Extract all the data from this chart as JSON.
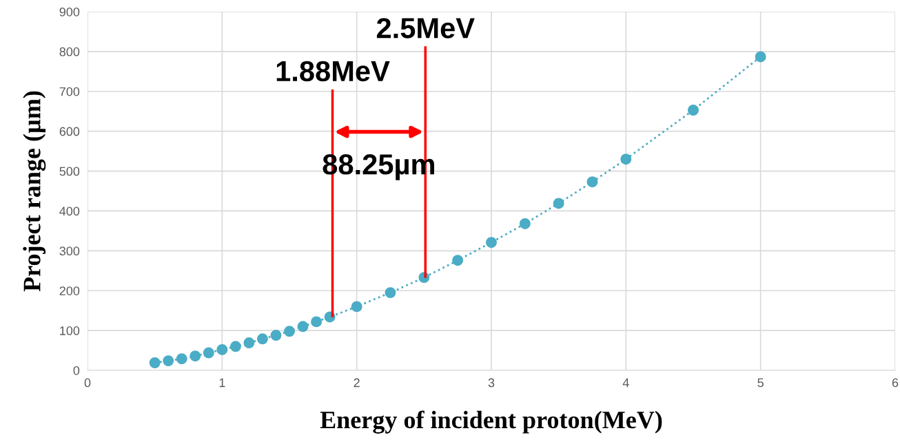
{
  "chart_data": {
    "type": "scatter",
    "xlabel": "Energy of incident proton(MeV)",
    "ylabel": "Project range (µm)",
    "x": [
      0.5,
      0.6,
      0.7,
      0.8,
      0.9,
      1.0,
      1.1,
      1.2,
      1.3,
      1.4,
      1.5,
      1.6,
      1.7,
      1.8,
      2.0,
      2.25,
      2.5,
      2.75,
      3.0,
      3.25,
      3.5,
      3.75,
      4.0,
      4.5,
      5.0
    ],
    "series": [
      {
        "color": "#4bacc6",
        "marker": "circle",
        "values": [
          19,
          24,
          29,
          36,
          44,
          52,
          60,
          69,
          79,
          88,
          98,
          110,
          122,
          134,
          160,
          195,
          233,
          276,
          321,
          368,
          419,
          473,
          530,
          653,
          787
        ]
      },
      {
        "type": "line",
        "color": "#4bacc6",
        "line_style": "dotted",
        "values": [
          19,
          24,
          29,
          36,
          44,
          52,
          60,
          69,
          79,
          88,
          98,
          110,
          122,
          134,
          160,
          195,
          233,
          276,
          321,
          368,
          419,
          473,
          530,
          653,
          787
        ]
      }
    ],
    "xlim": [
      0,
      6
    ],
    "xticks": [
      0,
      1,
      2,
      3,
      4,
      5,
      6
    ],
    "ylim": [
      0,
      900
    ],
    "yticks": [
      0,
      100,
      200,
      300,
      400,
      500,
      600,
      700,
      800,
      900
    ],
    "grid": true,
    "ref_lines": [
      {
        "axis": "x",
        "value": 1.82,
        "label": "1.88MeV",
        "color": "#ff0000"
      },
      {
        "axis": "x",
        "value": 2.51,
        "label": "2.5MeV",
        "color": "#ff0000"
      }
    ],
    "annotations": [
      "88.25µm"
    ]
  }
}
